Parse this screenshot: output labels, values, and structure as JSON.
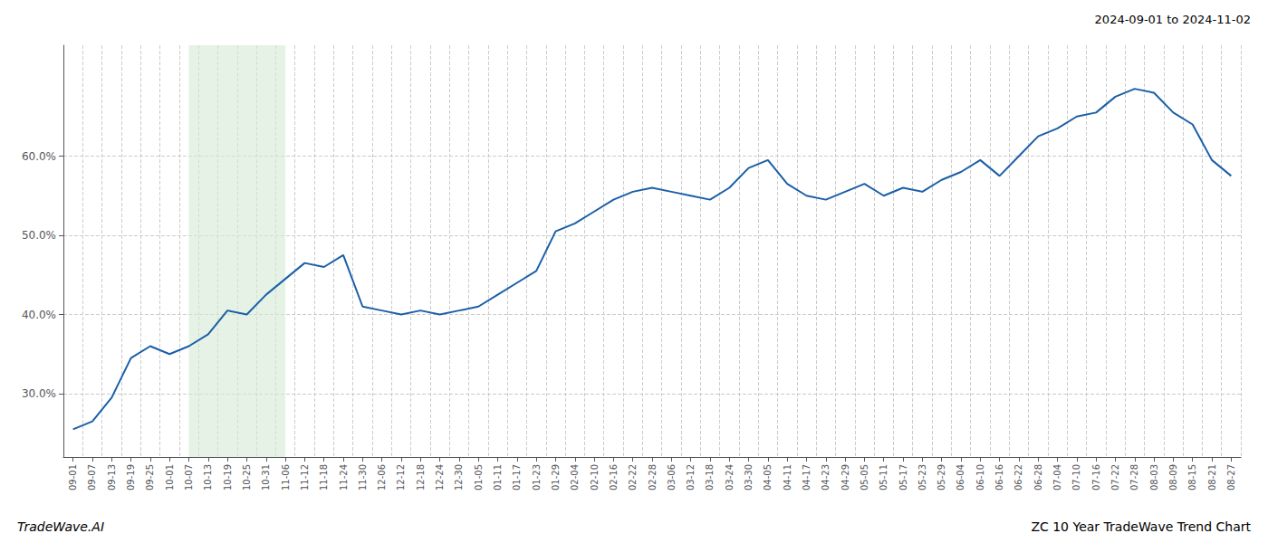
{
  "chart_data": {
    "type": "line",
    "title": "ZC 10 Year TradeWave Trend Chart",
    "subtitle": "2024-09-01 to 2024-11-02",
    "annotations": [
      "TradeWave.AI"
    ],
    "color": "#1a5fa8",
    "grid": true,
    "highlight": {
      "from": "10-07",
      "to": "11-06",
      "color": "#d4ead4"
    },
    "ylim": [
      22,
      74
    ],
    "yticks": [
      {
        "value": 30.0,
        "label": "30.0%"
      },
      {
        "value": 40.0,
        "label": "40.0%"
      },
      {
        "value": 50.0,
        "label": "50.0%"
      },
      {
        "value": 60.0,
        "label": "60.0%"
      }
    ],
    "categories": [
      "09-01",
      "09-07",
      "09-13",
      "09-19",
      "09-25",
      "10-01",
      "10-07",
      "10-13",
      "10-19",
      "10-25",
      "10-31",
      "11-06",
      "11-12",
      "11-18",
      "11-24",
      "11-30",
      "12-06",
      "12-12",
      "12-18",
      "12-24",
      "12-30",
      "01-05",
      "01-11",
      "01-17",
      "01-23",
      "01-29",
      "02-04",
      "02-10",
      "02-16",
      "02-22",
      "02-28",
      "03-06",
      "03-12",
      "03-18",
      "03-24",
      "03-30",
      "04-05",
      "04-11",
      "04-17",
      "04-23",
      "04-29",
      "05-05",
      "05-11",
      "05-17",
      "05-23",
      "05-29",
      "06-04",
      "06-10",
      "06-16",
      "06-22",
      "06-28",
      "07-04",
      "07-10",
      "07-16",
      "07-22",
      "07-28",
      "08-03",
      "08-09",
      "08-15",
      "08-21",
      "08-27"
    ],
    "values": [
      25.5,
      26.5,
      29.5,
      34.5,
      36.0,
      35.0,
      36.0,
      37.5,
      40.5,
      40.0,
      42.5,
      44.5,
      46.5,
      46.0,
      47.5,
      41.0,
      40.5,
      40.0,
      40.5,
      40.0,
      40.5,
      41.0,
      42.5,
      44.0,
      45.5,
      50.5,
      51.5,
      53.0,
      54.5,
      55.5,
      56.0,
      55.5,
      55.0,
      54.5,
      56.0,
      58.5,
      59.5,
      56.5,
      55.0,
      54.5,
      55.5,
      56.5,
      55.0,
      56.0,
      55.5,
      57.0,
      58.0,
      59.5,
      57.5,
      60.0,
      62.5,
      63.5,
      65.0,
      65.5,
      67.5,
      68.5,
      68.0,
      65.5,
      64.0,
      59.5,
      57.5
    ]
  }
}
